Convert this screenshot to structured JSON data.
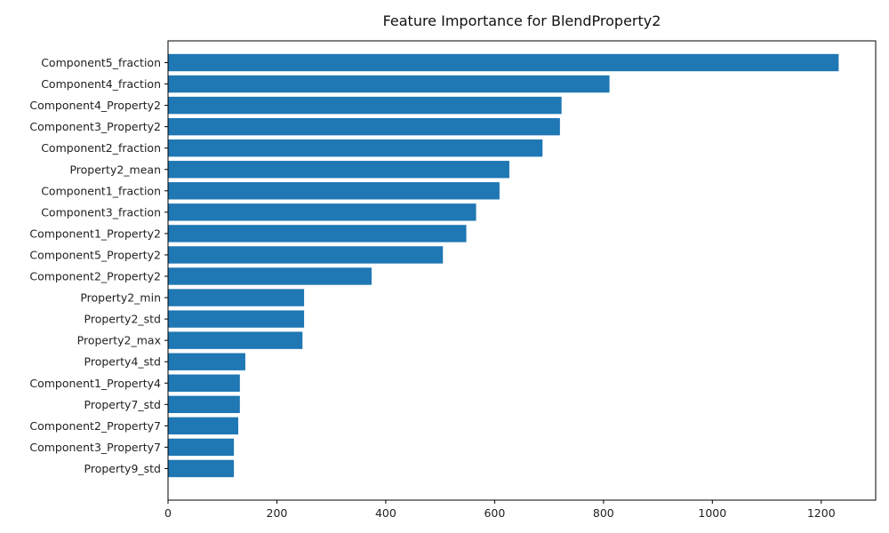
{
  "chart_data": {
    "type": "bar",
    "orientation": "horizontal",
    "title": "Feature Importance for BlendProperty2",
    "xlabel": "",
    "ylabel": "",
    "xlim": [
      0,
      1300
    ],
    "xticks": [
      0,
      200,
      400,
      600,
      800,
      1000,
      1200
    ],
    "grid": false,
    "bar_color": "#1f77b4",
    "categories": [
      "Component5_fraction",
      "Component4_fraction",
      "Component4_Property2",
      "Component3_Property2",
      "Component2_fraction",
      "Property2_mean",
      "Component1_fraction",
      "Component3_fraction",
      "Component1_Property2",
      "Component5_Property2",
      "Component2_Property2",
      "Property2_min",
      "Property2_std",
      "Property2_max",
      "Property4_std",
      "Component1_Property4",
      "Property7_std",
      "Component2_Property7",
      "Component3_Property7",
      "Property9_std"
    ],
    "values": [
      1232,
      811,
      723,
      720,
      688,
      627,
      609,
      566,
      548,
      505,
      374,
      250,
      250,
      247,
      142,
      132,
      132,
      129,
      121,
      121
    ]
  }
}
